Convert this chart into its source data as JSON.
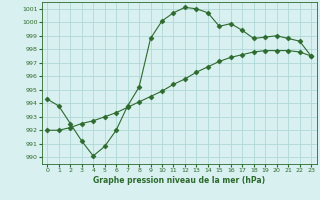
{
  "line1_x": [
    0,
    1,
    2,
    3,
    4,
    5,
    6,
    7,
    8,
    9,
    10,
    11,
    12,
    13,
    14,
    15,
    16,
    17,
    18,
    19,
    20,
    21,
    22,
    23
  ],
  "line1_y": [
    994.3,
    993.8,
    992.5,
    991.2,
    990.1,
    990.8,
    992.0,
    993.8,
    995.2,
    998.8,
    1000.1,
    1000.7,
    1001.1,
    1001.0,
    1000.7,
    999.7,
    999.9,
    999.4,
    998.8,
    998.9,
    999.0,
    998.8,
    998.6,
    997.5
  ],
  "line2_x": [
    0,
    1,
    2,
    3,
    4,
    5,
    6,
    7,
    8,
    9,
    10,
    11,
    12,
    13,
    14,
    15,
    16,
    17,
    18,
    19,
    20,
    21,
    22,
    23
  ],
  "line2_y": [
    992.0,
    992.0,
    992.2,
    992.5,
    992.7,
    993.0,
    993.3,
    993.7,
    994.1,
    994.5,
    994.9,
    995.4,
    995.8,
    996.3,
    996.7,
    997.1,
    997.4,
    997.6,
    997.8,
    997.9,
    997.9,
    997.9,
    997.8,
    997.5
  ],
  "line_color": "#2d6a2d",
  "marker": "D",
  "markersize": 2.5,
  "bg_color": "#d8f0f0",
  "grid_color": "#b0d8d8",
  "xlabel": "Graphe pression niveau de la mer (hPa)",
  "ylim": [
    989.5,
    1001.5
  ],
  "yticks": [
    990,
    991,
    992,
    993,
    994,
    995,
    996,
    997,
    998,
    999,
    1000,
    1001
  ],
  "xlim": [
    -0.5,
    23.5
  ],
  "xticks": [
    0,
    1,
    2,
    3,
    4,
    5,
    6,
    7,
    8,
    9,
    10,
    11,
    12,
    13,
    14,
    15,
    16,
    17,
    18,
    19,
    20,
    21,
    22,
    23
  ]
}
